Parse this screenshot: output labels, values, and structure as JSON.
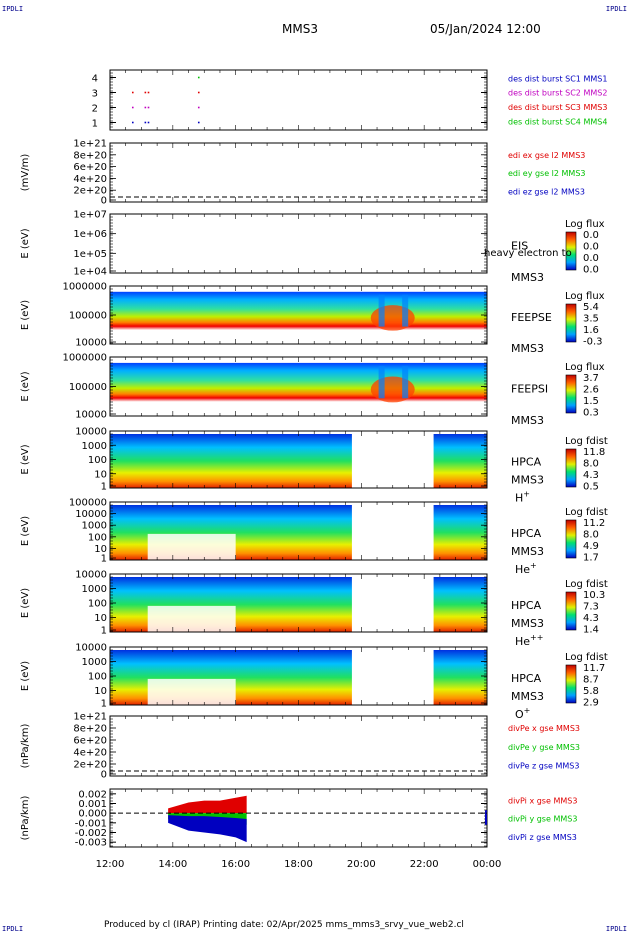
{
  "corner_labels": {
    "tl": "IPDLI",
    "tr": "IPDLI",
    "bl": "IPDLI",
    "br": "IPDLI"
  },
  "header": {
    "spacecraft": "MMS3",
    "date": "05/Jan/2024 12:00"
  },
  "footer": {
    "text": "Produced by cl (IRAP)    Printing date: 02/Apr/2025    mms_mms3_srvy_vue_web2.cl"
  },
  "chart_data": [
    {
      "type": "scatter",
      "name": "des dist burst availability",
      "ylim": [
        0.5,
        4.5
      ],
      "yticks": [
        "1",
        "2",
        "3",
        "4"
      ],
      "series": [
        {
          "name": "des dist burst SC1 MMS1",
          "color": "#0000c0",
          "y": 1,
          "hours": [
            12.7,
            13.1,
            13.2,
            14.8
          ]
        },
        {
          "name": "des dist burst SC2 MMS2",
          "color": "#c000c0",
          "y": 2,
          "hours": [
            12.7,
            13.1,
            13.2,
            14.8
          ]
        },
        {
          "name": "des dist burst SC3 MMS3",
          "color": "#e00000",
          "y": 3,
          "hours": [
            12.7,
            13.1,
            13.2,
            14.8
          ]
        },
        {
          "name": "des dist burst SC4 MMS4",
          "color": "#00c000",
          "y": 4,
          "hours": [
            14.8
          ]
        }
      ]
    },
    {
      "type": "line",
      "name": "edi e gse",
      "ylabel": "(mV/m)",
      "yticks": [
        "0",
        "2e+20",
        "4e+20",
        "6e+20",
        "8e+20",
        "1e+21"
      ],
      "ylim": [
        0,
        1e+21
      ],
      "series": [
        {
          "name": "edi ex gse l2 MMS3",
          "color": "#e00000",
          "values": []
        },
        {
          "name": "edi ey gse l2 MMS3",
          "color": "#00c000",
          "values": []
        },
        {
          "name": "edi ez gse l2 MMS3",
          "color": "#0000c0",
          "values": []
        }
      ]
    },
    {
      "type": "heatmap",
      "instrument": [
        "EIS",
        "MMS3"
      ],
      "ylabel": "E (eV)",
      "yticks": [
        "1e+04",
        "1e+05",
        "1e+06",
        "1e+07"
      ],
      "colorbar": {
        "title": "Log flux",
        "ticks": [
          "0.0",
          "0.0",
          "0.0",
          "0.0"
        ]
      },
      "overlay_text": "heavy electron to",
      "values": []
    },
    {
      "type": "heatmap",
      "instrument": [
        "FEEPSE",
        "MMS3"
      ],
      "ylabel": "E (eV)",
      "yticks": [
        "10000",
        "100000",
        "1000000"
      ],
      "colorbar": {
        "title": "Log flux",
        "ticks": [
          "5.4",
          "3.5",
          "1.6",
          "-0.3"
        ]
      },
      "coverage_hours": [
        [
          12.0,
          24.0
        ]
      ]
    },
    {
      "type": "heatmap",
      "instrument": [
        "FEEPSI",
        "MMS3"
      ],
      "ylabel": "E (eV)",
      "yticks": [
        "10000",
        "100000",
        "1000000"
      ],
      "colorbar": {
        "title": "Log flux",
        "ticks": [
          "3.7",
          "2.6",
          "1.5",
          "0.3"
        ]
      },
      "coverage_hours": [
        [
          12.0,
          24.0
        ]
      ]
    },
    {
      "type": "heatmap",
      "instrument": [
        "HPCA",
        "MMS3"
      ],
      "species": "H",
      "species_sup": "+",
      "ylabel": "E (eV)",
      "yticks": [
        "1",
        "10",
        "100",
        "1000",
        "10000"
      ],
      "colorbar": {
        "title": "Log fdist",
        "ticks": [
          "11.8",
          "8.0",
          "4.3",
          "0.5"
        ]
      },
      "coverage_hours": [
        [
          12.0,
          19.7
        ],
        [
          22.3,
          24.0
        ]
      ]
    },
    {
      "type": "heatmap",
      "instrument": [
        "HPCA",
        "MMS3"
      ],
      "species": "He",
      "species_sup": "+",
      "ylabel": "E (eV)",
      "yticks": [
        "1",
        "10",
        "100",
        "1000",
        "10000",
        "100000"
      ],
      "colorbar": {
        "title": "Log fdist",
        "ticks": [
          "11.2",
          "8.0",
          "4.9",
          "1.7"
        ]
      },
      "coverage_hours": [
        [
          12.0,
          19.7
        ],
        [
          22.3,
          24.0
        ]
      ]
    },
    {
      "type": "heatmap",
      "instrument": [
        "HPCA",
        "MMS3"
      ],
      "species": "He",
      "species_sup": "++",
      "ylabel": "E (eV)",
      "yticks": [
        "1",
        "10",
        "100",
        "1000",
        "10000"
      ],
      "colorbar": {
        "title": "Log fdist",
        "ticks": [
          "10.3",
          "7.3",
          "4.3",
          "1.4"
        ]
      },
      "coverage_hours": [
        [
          12.0,
          19.7
        ],
        [
          22.3,
          24.0
        ]
      ]
    },
    {
      "type": "heatmap",
      "instrument": [
        "HPCA",
        "MMS3"
      ],
      "species": "O",
      "species_sup": "+",
      "ylabel": "E (eV)",
      "yticks": [
        "1",
        "10",
        "100",
        "1000",
        "10000"
      ],
      "colorbar": {
        "title": "Log fdist",
        "ticks": [
          "11.7",
          "8.7",
          "5.8",
          "2.9"
        ]
      },
      "coverage_hours": [
        [
          12.0,
          19.7
        ],
        [
          22.3,
          24.0
        ]
      ]
    },
    {
      "type": "line",
      "name": "divPe gse",
      "ylabel": "(nPa/km)",
      "yticks": [
        "0",
        "2e+20",
        "4e+20",
        "6e+20",
        "8e+20",
        "1e+21"
      ],
      "ylim": [
        0,
        1e+21
      ],
      "series": [
        {
          "name": "divPe x gse MMS3",
          "color": "#e00000",
          "values": []
        },
        {
          "name": "divPe y gse MMS3",
          "color": "#00c000",
          "values": []
        },
        {
          "name": "divPe z gse MMS3",
          "color": "#0000c0",
          "values": []
        }
      ]
    },
    {
      "type": "area",
      "name": "divPi gse",
      "ylabel": "(nPa/km)",
      "ylim": [
        -0.0035,
        0.0025
      ],
      "yticks": [
        "0.002",
        "0.001",
        "0.000",
        "-0.001",
        "-0.002",
        "-0.003"
      ],
      "series": [
        {
          "name": "divPi x gse MMS3",
          "color": "#e00000",
          "hours": [
            13.85,
            14.5,
            15.0,
            15.5,
            16.0,
            16.35
          ],
          "range": [
            [
              0.0,
              0.0005
            ],
            [
              0.0,
              0.0011
            ],
            [
              0.0,
              0.0013
            ],
            [
              0.0,
              0.0013
            ],
            [
              0.0,
              0.0016
            ],
            [
              0.0,
              0.0018
            ]
          ]
        },
        {
          "name": "divPi y gse MMS3",
          "color": "#00c000",
          "hours": [
            13.85,
            14.5,
            15.0,
            15.5,
            16.0,
            16.35
          ],
          "range": [
            [
              -0.0006,
              0.0
            ],
            [
              -0.001,
              0.0
            ],
            [
              -0.0012,
              0.0
            ],
            [
              -0.0011,
              0.0
            ],
            [
              -0.0012,
              0.0
            ],
            [
              -0.0012,
              0.0
            ]
          ]
        },
        {
          "name": "divPi z gse MMS3",
          "color": "#0000c0",
          "hours": [
            13.85,
            14.5,
            15.0,
            15.5,
            16.0,
            16.35
          ],
          "range": [
            [
              -0.001,
              -0.0002
            ],
            [
              -0.0018,
              -0.0003
            ],
            [
              -0.002,
              -0.0003
            ],
            [
              -0.0022,
              -0.0004
            ],
            [
              -0.0025,
              -0.0005
            ],
            [
              -0.003,
              -0.0006
            ]
          ]
        },
        {
          "name": "end marker",
          "color": "#0000c0",
          "hours": [
            24.0
          ],
          "range": [
            [
              -0.0012,
              0.0003
            ]
          ]
        }
      ]
    }
  ],
  "xaxis": {
    "hours": [
      12,
      14,
      16,
      18,
      20,
      22,
      24
    ],
    "labels": [
      "12:00",
      "14:00",
      "16:00",
      "18:00",
      "20:00",
      "22:00",
      "00:00"
    ]
  }
}
